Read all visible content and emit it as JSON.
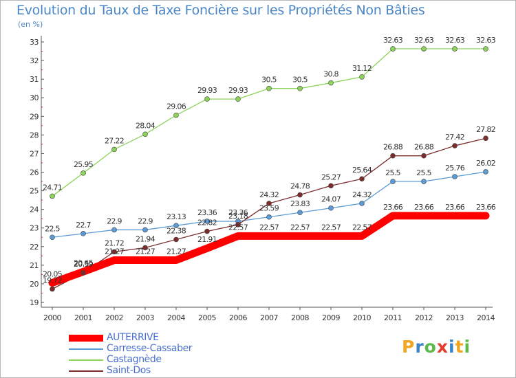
{
  "title": "Evolution du Taux de Taxe Foncière sur les Propriétés Non Bâties",
  "unit": "(en %)",
  "logo": {
    "letters": [
      "P",
      "r",
      "o",
      "x",
      "i",
      "t",
      "i"
    ],
    "colors": [
      "#f2a521",
      "#3b83c9",
      "#5bb84b",
      "#e63b2e",
      "#3b83c9",
      "#f2a521",
      "#5bb84b"
    ]
  },
  "chart_data": {
    "type": "line",
    "x": [
      2000,
      2001,
      2002,
      2003,
      2004,
      2005,
      2006,
      2007,
      2008,
      2009,
      2010,
      2011,
      2012,
      2013,
      2014
    ],
    "ylim": [
      19,
      33
    ],
    "yticks": [
      19,
      20,
      21,
      22,
      23,
      24,
      25,
      26,
      27,
      28,
      29,
      30,
      31,
      32,
      33
    ],
    "grid": false,
    "legend_position": "bottom-left",
    "series": [
      {
        "name": "AUTERRIVE",
        "color": "#ff0000",
        "values": [
          20.05,
          20.65,
          21.27,
          21.27,
          21.27,
          21.91,
          22.57,
          22.57,
          22.57,
          22.57,
          22.57,
          23.66,
          23.66,
          23.66,
          23.66
        ],
        "labels": [
          "20.05",
          "20.65",
          "21.27",
          "21.27",
          "21.27",
          "21.91",
          "22.57",
          "22.57",
          "22.57",
          "22.57",
          "22.57",
          "23.66",
          "23.66",
          "23.66",
          "23.66"
        ]
      },
      {
        "name": "Carresse-Cassaber",
        "color": "#5b9bd5",
        "values": [
          22.5,
          22.7,
          22.9,
          22.9,
          23.13,
          23.36,
          23.36,
          23.59,
          23.83,
          24.07,
          24.32,
          25.5,
          25.5,
          25.76,
          26.02
        ],
        "labels": [
          "22.5",
          "22.7",
          "22.9",
          "22.9",
          "23.13",
          "23.36",
          "23.36",
          "23.59",
          "23.83",
          "24.07",
          "24.32",
          "25.5",
          "25.5",
          "25.76",
          "26.02"
        ]
      },
      {
        "name": "Castagnède",
        "color": "#8cd35a",
        "values": [
          24.71,
          25.95,
          27.22,
          28.04,
          29.06,
          29.93,
          29.93,
          30.5,
          30.5,
          30.8,
          31.12,
          32.63,
          32.63,
          32.63,
          32.63
        ],
        "labels": [
          "24.71",
          "25.95",
          "27.22",
          "28.04",
          "29.06",
          "29.93",
          "29.93",
          "30.5",
          "30.5",
          "30.8",
          "31.12",
          "32.63",
          "32.63",
          "32.63",
          "32.63"
        ]
      },
      {
        "name": "Saint-Dos",
        "color": "#7b2d2d",
        "values": [
          19.72,
          20.59,
          21.72,
          21.94,
          22.38,
          22.82,
          23.18,
          24.32,
          24.78,
          25.27,
          25.64,
          26.88,
          26.88,
          27.42,
          27.82
        ],
        "labels": [
          "19.72",
          "20.59",
          "21.72",
          "21.94",
          "22.38",
          "22.82",
          "23.18",
          "24.32",
          "24.78",
          "25.27",
          "25.64",
          "26.88",
          "26.88",
          "27.42",
          "27.82"
        ]
      }
    ]
  }
}
